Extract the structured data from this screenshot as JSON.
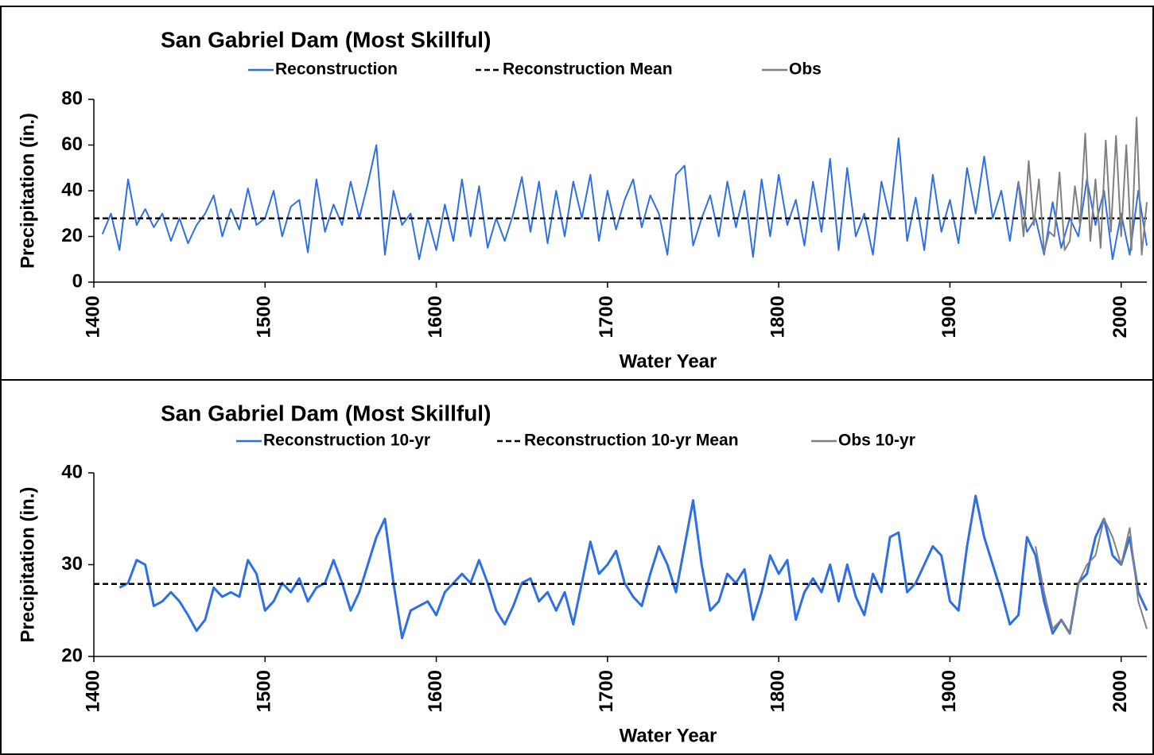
{
  "chart_data": [
    {
      "type": "line",
      "title": "San Gabriel Dam (Most Skillful)",
      "x_label": "Water Year",
      "y_label": "Precipitation (in.)",
      "xlim": [
        1400,
        2015
      ],
      "xticks": [
        1400,
        1500,
        1600,
        1700,
        1800,
        1900,
        2000
      ],
      "ylim": [
        0,
        80
      ],
      "yticks": [
        0,
        20,
        40,
        60,
        80
      ],
      "series": [
        {
          "name": "Reconstruction",
          "color": "#2f6fe6",
          "dash": false,
          "x": [
            1405,
            1410,
            1415,
            1420,
            1425,
            1430,
            1435,
            1440,
            1445,
            1450,
            1455,
            1460,
            1465,
            1470,
            1475,
            1480,
            1485,
            1490,
            1495,
            1500,
            1505,
            1510,
            1515,
            1520,
            1525,
            1530,
            1535,
            1540,
            1545,
            1550,
            1555,
            1560,
            1565,
            1570,
            1575,
            1580,
            1585,
            1590,
            1595,
            1600,
            1605,
            1610,
            1615,
            1620,
            1625,
            1630,
            1635,
            1640,
            1645,
            1650,
            1655,
            1660,
            1665,
            1670,
            1675,
            1680,
            1685,
            1690,
            1695,
            1700,
            1705,
            1710,
            1715,
            1720,
            1725,
            1730,
            1735,
            1740,
            1745,
            1750,
            1755,
            1760,
            1765,
            1770,
            1775,
            1780,
            1785,
            1790,
            1795,
            1800,
            1805,
            1810,
            1815,
            1820,
            1825,
            1830,
            1835,
            1840,
            1845,
            1850,
            1855,
            1860,
            1865,
            1870,
            1875,
            1880,
            1885,
            1890,
            1895,
            1900,
            1905,
            1910,
            1915,
            1920,
            1925,
            1930,
            1935,
            1940,
            1945,
            1950,
            1955,
            1960,
            1965,
            1970,
            1975,
            1980,
            1985,
            1990,
            1995,
            2000,
            2005,
            2010,
            2015
          ],
          "values": [
            21,
            30,
            14,
            45,
            25,
            32,
            24,
            30,
            18,
            28,
            17,
            25,
            30,
            38,
            20,
            32,
            23,
            41,
            25,
            28,
            40,
            20,
            33,
            36,
            13,
            45,
            22,
            34,
            25,
            44,
            28,
            43,
            60,
            12,
            40,
            25,
            30,
            10,
            28,
            14,
            34,
            18,
            45,
            20,
            42,
            15,
            28,
            18,
            30,
            46,
            22,
            44,
            17,
            40,
            20,
            44,
            28,
            47,
            18,
            40,
            23,
            36,
            45,
            24,
            38,
            30,
            12,
            47,
            51,
            16,
            28,
            38,
            20,
            44,
            24,
            40,
            11,
            45,
            20,
            47,
            25,
            36,
            16,
            44,
            22,
            54,
            14,
            50,
            20,
            30,
            12,
            44,
            28,
            63,
            18,
            37,
            14,
            47,
            22,
            36,
            17,
            50,
            30,
            55,
            28,
            40,
            18,
            44,
            22,
            28,
            12,
            35,
            15,
            28,
            20,
            45,
            25,
            40,
            10,
            30,
            12,
            40,
            16
          ]
        },
        {
          "name": "Reconstruction Mean",
          "color": "#000000",
          "dash": true,
          "x": [
            1400,
            2015
          ],
          "values": [
            27.9,
            27.9
          ]
        },
        {
          "name": "Obs",
          "color": "#808080",
          "dash": false,
          "x": [
            1940,
            1943,
            1946,
            1949,
            1952,
            1955,
            1958,
            1961,
            1964,
            1967,
            1970,
            1973,
            1976,
            1979,
            1982,
            1985,
            1988,
            1991,
            1994,
            1997,
            2000,
            2003,
            2006,
            2009,
            2012,
            2015
          ],
          "values": [
            44,
            20,
            53,
            25,
            45,
            13,
            22,
            20,
            48,
            14,
            18,
            42,
            25,
            65,
            18,
            45,
            15,
            62,
            22,
            64,
            20,
            60,
            14,
            72,
            12,
            35
          ]
        }
      ]
    },
    {
      "type": "line",
      "title": "San Gabriel Dam (Most Skillful)",
      "x_label": "Water Year",
      "y_label": "Precipitation (in.)",
      "xlim": [
        1400,
        2015
      ],
      "xticks": [
        1400,
        1500,
        1600,
        1700,
        1800,
        1900,
        2000
      ],
      "ylim": [
        20,
        40
      ],
      "yticks": [
        20,
        30,
        40
      ],
      "series": [
        {
          "name": "Reconstruction  10-yr",
          "color": "#2f6fe6",
          "dash": false,
          "x": [
            1415,
            1420,
            1425,
            1430,
            1435,
            1440,
            1445,
            1450,
            1455,
            1460,
            1465,
            1470,
            1475,
            1480,
            1485,
            1490,
            1495,
            1500,
            1505,
            1510,
            1515,
            1520,
            1525,
            1530,
            1535,
            1540,
            1545,
            1550,
            1555,
            1560,
            1565,
            1570,
            1575,
            1580,
            1585,
            1590,
            1595,
            1600,
            1605,
            1610,
            1615,
            1620,
            1625,
            1630,
            1635,
            1640,
            1645,
            1650,
            1655,
            1660,
            1665,
            1670,
            1675,
            1680,
            1685,
            1690,
            1695,
            1700,
            1705,
            1710,
            1715,
            1720,
            1725,
            1730,
            1735,
            1740,
            1745,
            1750,
            1755,
            1760,
            1765,
            1770,
            1775,
            1780,
            1785,
            1790,
            1795,
            1800,
            1805,
            1810,
            1815,
            1820,
            1825,
            1830,
            1835,
            1840,
            1845,
            1850,
            1855,
            1860,
            1865,
            1870,
            1875,
            1880,
            1885,
            1890,
            1895,
            1900,
            1905,
            1910,
            1915,
            1920,
            1925,
            1930,
            1935,
            1940,
            1945,
            1950,
            1955,
            1960,
            1965,
            1970,
            1975,
            1980,
            1985,
            1990,
            1995,
            2000,
            2005,
            2010,
            2015
          ],
          "values": [
            27.5,
            28,
            30.5,
            30,
            25.5,
            26,
            27,
            26,
            24.5,
            22.8,
            24,
            27.5,
            26.5,
            27,
            26.5,
            30.5,
            29,
            25,
            26,
            28,
            27,
            28.5,
            26,
            27.5,
            28,
            30.5,
            28,
            25,
            27,
            30,
            33,
            35,
            28,
            22,
            25,
            25.5,
            26,
            24.5,
            27,
            28,
            29,
            28,
            30.5,
            28,
            25,
            23.5,
            25.5,
            28,
            28.5,
            26,
            27,
            25,
            27,
            23.5,
            28,
            32.5,
            29,
            30,
            31.5,
            28,
            26.5,
            25.5,
            29,
            32,
            30,
            27,
            32,
            37,
            30,
            25,
            26,
            29,
            28,
            29.5,
            24,
            27,
            31,
            29,
            30.5,
            24,
            27,
            28.5,
            27,
            30,
            26,
            30,
            26.5,
            24.5,
            29,
            27,
            33,
            33.5,
            27,
            28,
            30,
            32,
            31,
            26,
            25,
            32,
            37.5,
            33,
            30,
            27,
            23.5,
            24.5,
            33,
            31,
            26,
            22.5,
            24,
            22.5,
            28,
            29,
            33,
            35,
            31,
            30,
            33,
            27,
            25
          ]
        },
        {
          "name": "Reconstruction  10-yr Mean",
          "color": "#000000",
          "dash": true,
          "x": [
            1400,
            2015
          ],
          "values": [
            27.9,
            27.9
          ]
        },
        {
          "name": "Obs 10-yr",
          "color": "#808080",
          "dash": false,
          "x": [
            1950,
            1955,
            1960,
            1965,
            1970,
            1975,
            1980,
            1985,
            1990,
            1995,
            2000,
            2005,
            2010,
            2015
          ],
          "values": [
            32,
            27,
            23,
            24,
            22.5,
            28,
            30,
            31,
            35,
            33,
            30,
            34,
            26,
            23
          ]
        }
      ]
    }
  ]
}
